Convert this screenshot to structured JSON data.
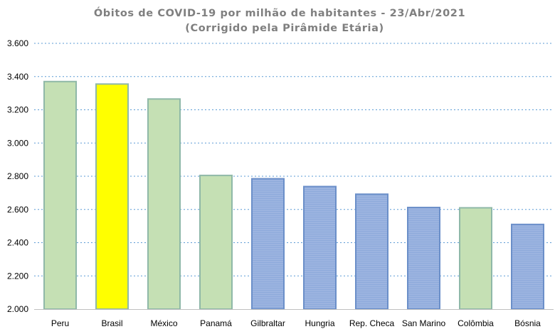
{
  "colors": {
    "green": "#c5e0b4",
    "green_border": "#8fb8a8",
    "yellow": "#ffff00",
    "yellow_border": "#8fb8a8",
    "blue": "#8eaadb",
    "blue_border": "#6b8fc9",
    "grid": "#5b9bd5",
    "axis": "#bfbfbf"
  },
  "chart_data": {
    "type": "bar",
    "title": "Óbitos de COVID-19 por milhão de habitantes  - 23/Abr/2021",
    "subtitle": "(Corrigido pela Pirâmide Etária)",
    "xlabel": "",
    "ylabel": "",
    "ylim": [
      2000,
      3600
    ],
    "yticks": [
      2000,
      2200,
      2400,
      2600,
      2800,
      3000,
      3200,
      3400,
      3600
    ],
    "ytick_labels": [
      "2.000",
      "2.200",
      "2.400",
      "2.600",
      "2.800",
      "3.000",
      "3.200",
      "3.400",
      "3.600"
    ],
    "grid": true,
    "categories": [
      "Peru",
      "Brasil",
      "México",
      "Panamá",
      "Gilbraltar",
      "Hungria",
      "Rep. Checa",
      "San Marino",
      "Colômbia",
      "Bósnia"
    ],
    "values": [
      3370,
      3355,
      3265,
      2805,
      2785,
      2738,
      2692,
      2612,
      2610,
      2510
    ],
    "bar_colors": [
      "green",
      "yellow",
      "green",
      "green",
      "blue",
      "blue",
      "blue",
      "blue",
      "green",
      "blue"
    ]
  }
}
